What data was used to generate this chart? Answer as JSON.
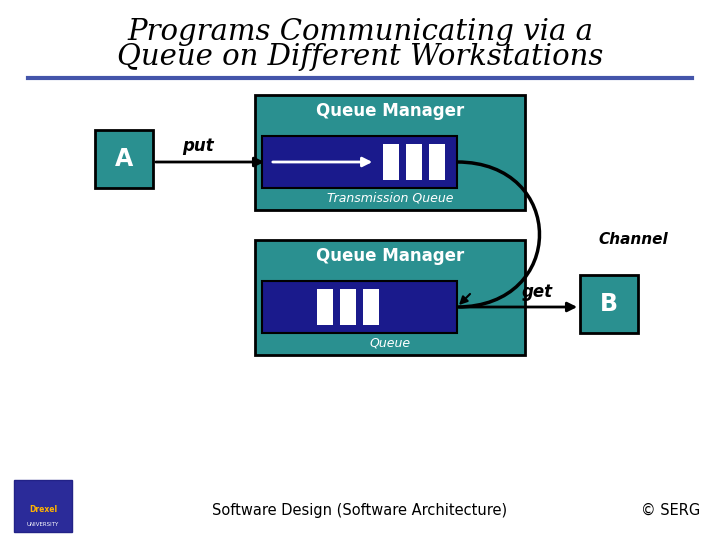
{
  "title_line1": "Programs Communicating via a",
  "title_line2": "Queue on Different Workstations",
  "teal_color": "#2A9090",
  "navy_color": "#1A1A8C",
  "white": "#FFFFFF",
  "black": "#000000",
  "bg_color": "#FFFFFF",
  "footer_text": "Software Design (Software Architecture)",
  "copyright_text": "© SERG",
  "separator_color": "#4455AA",
  "drexel_bg": "#2B2B99",
  "drexel_gold": "#FFB300"
}
